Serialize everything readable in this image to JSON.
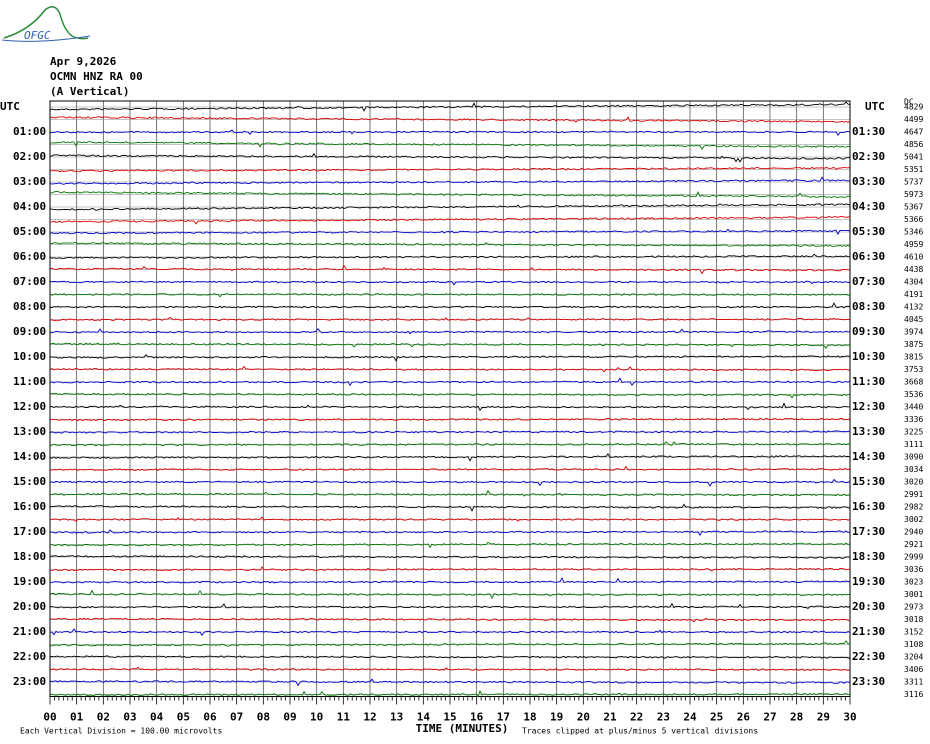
{
  "logo": "OFGC",
  "header": {
    "date": "Apr 9,2026",
    "station": "OCMN HNZ RA 00",
    "component": "(A Vertical)"
  },
  "left_header": "UTC",
  "right_header": "UTC",
  "dc_header": "DC",
  "left_labels": [
    "01:00",
    "02:00",
    "03:00",
    "04:00",
    "05:00",
    "06:00",
    "07:00",
    "08:00",
    "09:00",
    "10:00",
    "11:00",
    "12:00",
    "13:00",
    "14:00",
    "15:00",
    "16:00",
    "17:00",
    "18:00",
    "19:00",
    "20:00",
    "21:00",
    "22:00",
    "23:00"
  ],
  "right_labels": [
    "01:30",
    "02:30",
    "03:30",
    "04:30",
    "05:30",
    "06:30",
    "07:30",
    "08:30",
    "09:30",
    "10:30",
    "11:30",
    "12:30",
    "13:30",
    "14:30",
    "15:30",
    "16:30",
    "17:30",
    "18:30",
    "19:30",
    "20:30",
    "21:30",
    "22:30",
    "23:30"
  ],
  "dc_values": [
    4829,
    4499,
    4647,
    4856,
    5041,
    5351,
    5737,
    5973,
    5367,
    5366,
    5346,
    4959,
    4610,
    4438,
    4304,
    4191,
    4132,
    4045,
    3974,
    3875,
    3815,
    3753,
    3668,
    3536,
    3440,
    3336,
    3225,
    3111,
    3090,
    3034,
    3020,
    2991,
    2982,
    3002,
    2940,
    2921,
    2999,
    3036,
    3023,
    3001,
    2973,
    3018,
    3152,
    3108,
    3204,
    3406,
    3311,
    3116
  ],
  "x_labels": [
    "00",
    "01",
    "02",
    "03",
    "04",
    "05",
    "06",
    "07",
    "08",
    "09",
    "10",
    "11",
    "12",
    "13",
    "14",
    "15",
    "16",
    "17",
    "18",
    "19",
    "20",
    "21",
    "22",
    "23",
    "24",
    "25",
    "26",
    "27",
    "28",
    "29",
    "30"
  ],
  "x_title": "TIME (MINUTES)",
  "footer_left": "Each Vertical Division =  100.00 microvolts",
  "footer_right": "Traces clipped at plus/minus 5 vertical divisions"
}
